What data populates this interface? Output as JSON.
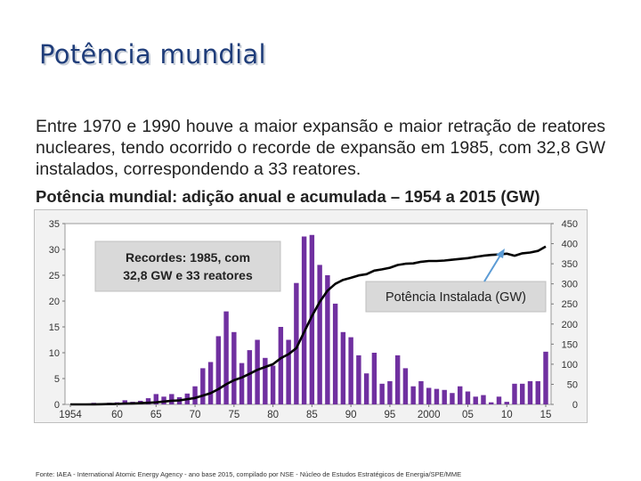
{
  "page": {
    "title": "Potência mundial",
    "body": "Entre 1970 e 1990 houve a maior expansão e maior retração de reatores nucleares, tendo ocorrido o recorde de expansão em 1985, com 32,8 GW instalados, correspondendo a 33 reatores.",
    "footer": "Fonte: IAEA - International Atomic Energy Agency - ano base 2015, compilado por NSE - Núcleo de Estudos Estratégicos de Energia/SPE/MME"
  },
  "colors": {
    "bar": "#7030a0",
    "line": "#000000",
    "arrow": "#5b9bd5",
    "title": "#1f3d7a"
  },
  "chart_data": {
    "type": "bar+line",
    "title": "Potência mundial: adição anual e acumulada – 1954 a 2015 (GW)",
    "x_start": 1954,
    "x_end": 2015,
    "x_ticks": [
      {
        "year": 1954,
        "label": "1954"
      },
      {
        "year": 1960,
        "label": "60"
      },
      {
        "year": 1965,
        "label": "65"
      },
      {
        "year": 1970,
        "label": "70"
      },
      {
        "year": 1975,
        "label": "75"
      },
      {
        "year": 1980,
        "label": "80"
      },
      {
        "year": 1985,
        "label": "85"
      },
      {
        "year": 1990,
        "label": "90"
      },
      {
        "year": 1995,
        "label": "95"
      },
      {
        "year": 2000,
        "label": "2000"
      },
      {
        "year": 2005,
        "label": "05"
      },
      {
        "year": 2010,
        "label": "10"
      },
      {
        "year": 2015,
        "label": "15"
      }
    ],
    "y_left": {
      "min": 0,
      "max": 35,
      "ticks": [
        0,
        5,
        10,
        15,
        20,
        25,
        30,
        35
      ]
    },
    "y_right": {
      "min": 0,
      "max": 450,
      "ticks": [
        0,
        50,
        100,
        150,
        200,
        250,
        300,
        350,
        400,
        450
      ]
    },
    "series": [
      {
        "name": "Adição anual (GW)",
        "kind": "bar",
        "axis": "left",
        "years": [
          1954,
          1955,
          1956,
          1957,
          1958,
          1959,
          1960,
          1961,
          1962,
          1963,
          1964,
          1965,
          1966,
          1967,
          1968,
          1969,
          1970,
          1971,
          1972,
          1973,
          1974,
          1975,
          1976,
          1977,
          1978,
          1979,
          1980,
          1981,
          1982,
          1983,
          1984,
          1985,
          1986,
          1987,
          1988,
          1989,
          1990,
          1991,
          1992,
          1993,
          1994,
          1995,
          1996,
          1997,
          1998,
          1999,
          2000,
          2001,
          2002,
          2003,
          2004,
          2005,
          2006,
          2007,
          2008,
          2009,
          2010,
          2011,
          2012,
          2013,
          2014,
          2015
        ],
        "values": [
          0,
          0,
          0,
          0.3,
          0.2,
          0.3,
          0.4,
          0.8,
          0.5,
          0.7,
          1.2,
          2,
          1.5,
          2,
          1.4,
          2.1,
          3.5,
          7,
          8.2,
          13.2,
          18,
          14,
          8,
          10.5,
          12.5,
          9,
          7.5,
          15,
          12.5,
          23.5,
          32.5,
          32.8,
          27,
          25,
          19.5,
          14,
          13,
          9.5,
          6,
          10,
          4,
          4.5,
          9.5,
          7,
          3.5,
          4.5,
          3.2,
          3,
          2.8,
          2.2,
          3.5,
          2.5,
          1.5,
          1.8,
          0.4,
          1.5,
          0.5,
          4,
          4,
          4.5,
          4.5,
          10.2
        ]
      },
      {
        "name": "Potência Instalada (GW)",
        "kind": "line",
        "axis": "right",
        "years": [
          1954,
          1955,
          1956,
          1957,
          1958,
          1959,
          1960,
          1961,
          1962,
          1963,
          1964,
          1965,
          1966,
          1967,
          1968,
          1969,
          1970,
          1971,
          1972,
          1973,
          1974,
          1975,
          1976,
          1977,
          1978,
          1979,
          1980,
          1981,
          1982,
          1983,
          1984,
          1985,
          1986,
          1987,
          1988,
          1989,
          1990,
          1991,
          1992,
          1993,
          1994,
          1995,
          1996,
          1997,
          1998,
          1999,
          2000,
          2001,
          2002,
          2003,
          2004,
          2005,
          2006,
          2007,
          2008,
          2009,
          2010,
          2011,
          2012,
          2013,
          2014,
          2015
        ],
        "values": [
          0,
          0,
          0,
          0.3,
          0.5,
          0.8,
          1,
          2,
          2.5,
          3,
          4,
          5,
          7,
          9,
          10,
          13,
          16,
          22,
          28,
          38,
          50,
          60,
          67,
          76,
          86,
          93,
          100,
          115,
          125,
          140,
          180,
          220,
          255,
          283,
          300,
          310,
          315,
          321,
          324,
          333,
          336,
          340,
          347,
          350,
          351,
          355,
          357,
          357,
          358,
          360,
          362,
          364,
          367,
          370,
          372,
          373,
          375,
          370,
          376,
          378,
          382,
          393
        ]
      }
    ],
    "annotations": [
      {
        "text": "Recordes: 1985, com 32,8 GW e 33 reatores"
      },
      {
        "text": "Potência Instalada (GW)"
      }
    ]
  }
}
